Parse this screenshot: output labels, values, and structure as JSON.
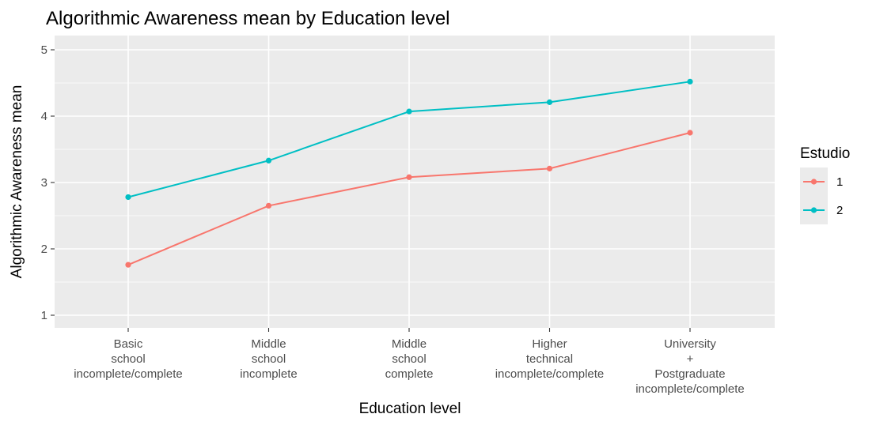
{
  "chart_data": {
    "type": "line",
    "title": "Algorithmic Awareness mean by Education level",
    "xlabel": "Education level",
    "ylabel": "Algorithmic Awareness mean",
    "categories": [
      [
        "Basic",
        "school",
        "incomplete/complete"
      ],
      [
        "Middle",
        "school",
        "incomplete"
      ],
      [
        "Middle",
        "school",
        "complete"
      ],
      [
        "Higher",
        "technical",
        "incomplete/complete"
      ],
      [
        "University",
        "+",
        "Postgraduate",
        "incomplete/complete"
      ]
    ],
    "ylim": [
      1,
      5
    ],
    "yticks": [
      1,
      2,
      3,
      4,
      5
    ],
    "grid": true,
    "legend": {
      "title": "Estudio",
      "position": "right"
    },
    "series": [
      {
        "name": "1",
        "color": "#f8766d",
        "values": [
          1.76,
          2.65,
          3.08,
          3.21,
          3.75
        ]
      },
      {
        "name": "2",
        "color": "#00bfc4",
        "values": [
          2.78,
          3.33,
          4.07,
          4.21,
          4.52
        ]
      }
    ]
  }
}
